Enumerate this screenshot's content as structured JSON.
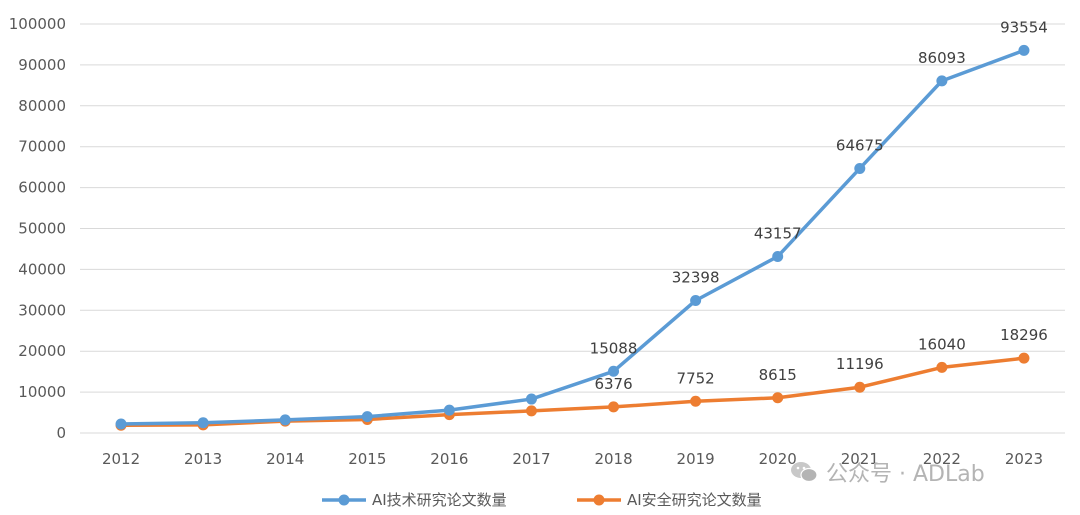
{
  "chart_data": {
    "type": "line",
    "categories": [
      "2012",
      "2013",
      "2014",
      "2015",
      "2016",
      "2017",
      "2018",
      "2019",
      "2020",
      "2021",
      "2022",
      "2023"
    ],
    "series": [
      {
        "name": "AI技术研究论文数量",
        "color": "#5b9bd5",
        "values": [
          2200,
          2500,
          3200,
          4000,
          5600,
          8300,
          15088,
          32398,
          43157,
          64675,
          86093,
          93554
        ],
        "labeled_from_index": 6
      },
      {
        "name": "AI安全研究论文数量",
        "color": "#ed7d31",
        "values": [
          1900,
          2000,
          2900,
          3300,
          4500,
          5400,
          6376,
          7752,
          8615,
          11196,
          16040,
          18296
        ],
        "labeled_from_index": 6
      }
    ],
    "ylim": [
      0,
      100000
    ],
    "yticks": [
      "0",
      "10000",
      "20000",
      "30000",
      "40000",
      "50000",
      "60000",
      "70000",
      "80000",
      "90000",
      "100000"
    ],
    "grid": true,
    "legend": "bottom"
  },
  "watermark": "公众号 · ADLab"
}
